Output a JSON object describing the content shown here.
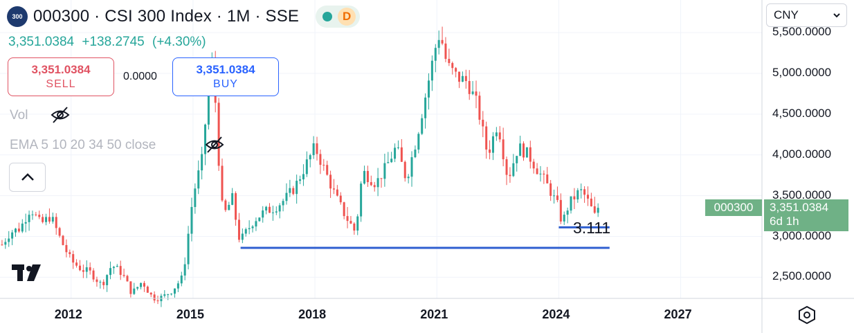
{
  "header": {
    "symbol_logo_text": "300",
    "title": "000300 · CSI 300 Index · 1M · SSE",
    "market_status_color": "#26a69a",
    "data_badge": "D"
  },
  "quote": {
    "last": "3,351.0384",
    "change": "+138.2745",
    "change_pct": "(+4.30%)"
  },
  "trade": {
    "sell_price": "3,351.0384",
    "sell_label": "SELL",
    "spread": "0.0000",
    "buy_price": "3,351.0384",
    "buy_label": "BUY"
  },
  "indicators": {
    "vol_label": "Vol",
    "ema_label": "EMA 5 10 20 34 50 close"
  },
  "currency": {
    "selected": "CNY"
  },
  "price_tag": {
    "symbol": "000300",
    "price": "3,351.0384",
    "countdown": "6d 1h"
  },
  "colors": {
    "up": "#26a69a",
    "down": "#ef5350",
    "support_line": "#2f5fd0",
    "price_tag_bg": "#6fb186"
  },
  "icons": [
    "eye-off-icon",
    "chevron-up-icon",
    "chevron-down-icon",
    "tradingview-logo-icon",
    "settings-hexagon-icon"
  ],
  "chart_data": {
    "type": "candlestick",
    "interval": "1M",
    "x_tick_labels": [
      "2012",
      "2015",
      "2018",
      "2021",
      "2024",
      "2027"
    ],
    "y_tick_labels": [
      "2,500.0000",
      "3,000.0000",
      "3,500.0000",
      "4,000.0000",
      "4,500.0000",
      "5,000.0000",
      "5,500.0000"
    ],
    "ylim": [
      2240,
      5900
    ],
    "xlim": [
      2010.25,
      2029.0
    ],
    "close_series": [
      [
        2010.3,
        2900
      ],
      [
        2010.5,
        3050
      ],
      [
        2010.75,
        3100
      ],
      [
        2011.0,
        3350
      ],
      [
        2011.25,
        3150
      ],
      [
        2011.5,
        3250
      ],
      [
        2011.75,
        2950
      ],
      [
        2012.0,
        2700
      ],
      [
        2012.25,
        2600
      ],
      [
        2012.5,
        2550
      ],
      [
        2012.75,
        2400
      ],
      [
        2013.0,
        2650
      ],
      [
        2013.25,
        2550
      ],
      [
        2013.5,
        2300
      ],
      [
        2013.75,
        2450
      ],
      [
        2014.0,
        2250
      ],
      [
        2014.25,
        2250
      ],
      [
        2014.5,
        2350
      ],
      [
        2014.75,
        2500
      ],
      [
        2015.0,
        3500
      ],
      [
        2015.25,
        4000
      ],
      [
        2015.42,
        5300
      ],
      [
        2015.58,
        4500
      ],
      [
        2015.67,
        3550
      ],
      [
        2015.75,
        3250
      ],
      [
        2016.0,
        3500
      ],
      [
        2016.08,
        3050
      ],
      [
        2016.17,
        2950
      ],
      [
        2016.5,
        3200
      ],
      [
        2016.75,
        3300
      ],
      [
        2017.0,
        3350
      ],
      [
        2017.25,
        3450
      ],
      [
        2017.5,
        3600
      ],
      [
        2017.75,
        3850
      ],
      [
        2018.0,
        4100
      ],
      [
        2018.08,
        4000
      ],
      [
        2018.25,
        3800
      ],
      [
        2018.5,
        3500
      ],
      [
        2018.75,
        3250
      ],
      [
        2019.0,
        3050
      ],
      [
        2019.17,
        3800
      ],
      [
        2019.5,
        3650
      ],
      [
        2019.75,
        3850
      ],
      [
        2020.0,
        4100
      ],
      [
        2020.25,
        3700
      ],
      [
        2020.5,
        4200
      ],
      [
        2020.75,
        4800
      ],
      [
        2021.0,
        5400
      ],
      [
        2021.08,
        5500
      ],
      [
        2021.25,
        5100
      ],
      [
        2021.5,
        4950
      ],
      [
        2021.75,
        4900
      ],
      [
        2022.0,
        4600
      ],
      [
        2022.25,
        4000
      ],
      [
        2022.5,
        4400
      ],
      [
        2022.75,
        3700
      ],
      [
        2023.0,
        4100
      ],
      [
        2023.25,
        4000
      ],
      [
        2023.5,
        3800
      ],
      [
        2023.75,
        3600
      ],
      [
        2024.0,
        3350
      ],
      [
        2024.08,
        3150
      ],
      [
        2024.25,
        3400
      ],
      [
        2024.5,
        3550
      ],
      [
        2024.58,
        3550
      ],
      [
        2024.75,
        3400
      ],
      [
        2024.92,
        3212
      ],
      [
        2025.0,
        3351
      ]
    ],
    "annotations": [
      {
        "text": "3.111",
        "type": "horizontal_segment",
        "y": 3111,
        "x_start": 2024.0,
        "x_end": 2025.25
      },
      {
        "text": "",
        "type": "horizontal_segment",
        "y": 2860,
        "x_start": 2016.17,
        "x_end": 2025.25
      }
    ]
  }
}
